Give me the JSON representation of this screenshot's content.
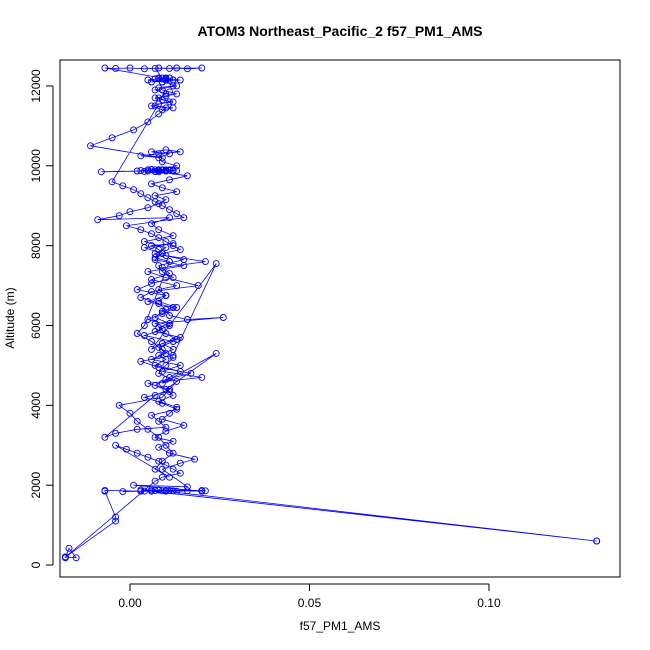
{
  "chart_data": {
    "type": "scatter",
    "title": "ATOM3 Northeast_Pacific_2 f57_PM1_AMS",
    "xlabel": "f57_PM1_AMS",
    "ylabel": "Altitude (m)",
    "xlim": [
      -0.0195,
      0.1365
    ],
    "ylim": [
      -300,
      12650
    ],
    "x_ticks": [
      0.0,
      0.05,
      0.1
    ],
    "x_tick_labels": [
      "0.00",
      "0.05",
      "0.10"
    ],
    "y_ticks": [
      0,
      2000,
      4000,
      6000,
      8000,
      10000,
      12000
    ],
    "y_tick_labels": [
      "0",
      "2000",
      "4000",
      "6000",
      "8000",
      "10000",
      "12000"
    ],
    "grid": false,
    "legend": "none",
    "series": [
      {
        "color": "#0000ff",
        "marker": "open-circle",
        "line": true,
        "x": [
          0.13,
          0.006,
          0.01,
          -0.002,
          0.004,
          0.012,
          0.003,
          0.02,
          0.001,
          0.016,
          0.009,
          0.014,
          0.018,
          0.011,
          0.008,
          0.012,
          0.007,
          0.01,
          0.015,
          0.009,
          0.011,
          0.013,
          0.008,
          0.012,
          0.01,
          0.024,
          0.009,
          0.011,
          0.014,
          0.007,
          0.01,
          0.008,
          0.012,
          0.009,
          0.013,
          0.01,
          0.008,
          0.011,
          0.007,
          0.009,
          0.012,
          0.005,
          0.01,
          0.008,
          0.013,
          0.006,
          0.011,
          0.009,
          0.021,
          0.01,
          0.008,
          0.006,
          0.012,
          0.004,
          0.009,
          0.007,
          0.015,
          0.005,
          0.01,
          0.019,
          0.006,
          0.003,
          0.008,
          0.01,
          0.011,
          0.016,
          0.026,
          0.007,
          0.009,
          0.004,
          0.012,
          0.008,
          0.01,
          0.006,
          0.014,
          0.009,
          0.02,
          0.005,
          0.011,
          0.007,
          -0.007,
          -0.004,
          0.002,
          0.01,
          0.008,
          0.006,
          0.013,
          0.009,
          0.004,
          0.011,
          0.007,
          0.01,
          0.017,
          0.008,
          0.003,
          0.012,
          0.024,
          0.006,
          0.009,
          0.014,
          0.007,
          0.011,
          0.005,
          0.009,
          0.013,
          0.008,
          0.01,
          0.002,
          0.006,
          0.012,
          0.009,
          0.008,
          0.015,
          0.007,
          0.01,
          0.004,
          0.012,
          0.008,
          0.006,
          0.011,
          -0.009,
          -0.003,
          0.0,
          0.005,
          0.008,
          0.01,
          0.007,
          0.013,
          0.009,
          0.006,
          0.011,
          0.016,
          0.008,
          0.003,
          0.01,
          0.012,
          0.007,
          0.009,
          0.005,
          0.011,
          0.008,
          0.013,
          0.006,
          0.01,
          0.009,
          0.012,
          0.008,
          0.004,
          0.007,
          0.01,
          -0.008,
          0.002,
          0.011,
          0.008,
          0.006,
          0.009,
          0.012,
          0.005,
          0.01,
          0.007,
          0.013,
          0.009,
          0.008,
          0.011,
          0.006,
          0.01,
          0.014,
          0.008,
          0.003,
          0.009,
          -0.011,
          -0.005,
          0.001,
          0.005,
          0.008,
          0.01,
          0.007,
          0.012,
          0.009,
          0.006,
          0.011,
          0.008,
          0.01,
          0.007,
          0.013,
          0.009,
          0.005,
          0.01,
          0.008,
          0.012,
          -0.007,
          -0.004,
          0.0,
          0.004,
          0.008,
          0.011,
          0.013,
          0.016,
          0.02,
          0.007,
          0.009,
          0.012,
          0.006,
          0.01,
          0.008,
          0.014,
          0.009,
          0.011,
          0.007,
          0.01,
          0.012,
          0.008,
          0.009,
          0.011,
          0.013,
          0.01,
          0.007,
          0.009,
          0.012,
          0.008,
          -0.005,
          -0.002,
          0.001,
          0.003,
          0.005,
          0.007,
          0.009,
          0.011,
          0.013,
          0.015,
          -0.001,
          0.003,
          0.006,
          0.008,
          0.01,
          0.012,
          0.014,
          0.009,
          0.007,
          0.011,
          0.004,
          0.002,
          0.006,
          0.009,
          0.012,
          0.01,
          0.008,
          0.013,
          0.011,
          0.009,
          -0.003,
          0.0,
          0.002,
          0.005,
          0.008,
          0.01,
          0.012,
          0.009,
          0.007,
          0.011,
          -0.004,
          -0.001,
          0.002,
          0.005,
          0.008,
          0.01,
          0.012,
          0.014,
          0.009,
          0.007,
          -0.018,
          -0.018,
          -0.017,
          -0.015,
          -0.018,
          -0.004,
          -0.004,
          -0.007,
          -0.007,
          0.003,
          0.006,
          0.009,
          0.011,
          0.013,
          0.016,
          0.02,
          0.021,
          0.008,
          0.007,
          0.01,
          0.13
        ],
        "y": [
          600,
          1850,
          1870,
          1840,
          1850,
          1860,
          1880,
          1850,
          2000,
          1960,
          2400,
          2550,
          2650,
          2800,
          2950,
          3100,
          3200,
          3350,
          3500,
          3650,
          3800,
          3950,
          4100,
          4250,
          4400,
          5300,
          4550,
          4700,
          4850,
          5000,
          5150,
          5250,
          5400,
          5550,
          5650,
          5800,
          5950,
          6050,
          6200,
          6350,
          6450,
          6600,
          6750,
          6900,
          7000,
          7150,
          7300,
          7450,
          7600,
          7750,
          7900,
          8000,
          8050,
          7950,
          7800,
          7650,
          7500,
          7350,
          7200,
          7000,
          6850,
          6700,
          6550,
          6400,
          6250,
          6150,
          6200,
          6050,
          5900,
          5750,
          5600,
          5450,
          5300,
          5150,
          5000,
          4850,
          4700,
          4550,
          4400,
          4250,
          3200,
          3300,
          3400,
          3450,
          3600,
          3750,
          3900,
          4050,
          4200,
          4350,
          4500,
          4650,
          4800,
          4950,
          5100,
          5250,
          7550,
          5400,
          5550,
          5700,
          5850,
          6000,
          6150,
          6300,
          6450,
          6600,
          6750,
          6900,
          7050,
          7200,
          7350,
          7500,
          7650,
          7800,
          7950,
          8100,
          8250,
          8400,
          8550,
          8700,
          8650,
          8750,
          8850,
          8950,
          9050,
          9150,
          9250,
          9350,
          9450,
          9550,
          9650,
          9750,
          9850,
          9880,
          9900,
          9880,
          9860,
          9900,
          9870,
          9890,
          9900,
          9880,
          9910,
          9870,
          9900,
          9890,
          9880,
          9860,
          9900,
          9880,
          9850,
          9870,
          9900,
          9880,
          9910,
          9890,
          9870,
          9900,
          9880,
          9860,
          10000,
          10100,
          10200,
          10300,
          10350,
          10400,
          10350,
          10300,
          10250,
          10200,
          10500,
          10700,
          10900,
          11100,
          11300,
          11450,
          11500,
          11450,
          11400,
          11500,
          11600,
          11700,
          11800,
          11900,
          12000,
          12100,
          12150,
          12200,
          12180,
          12150,
          12450,
          12440,
          12450,
          12430,
          12450,
          12440,
          12450,
          12430,
          12450,
          12440,
          12200,
          12150,
          12100,
          12180,
          12200,
          12150,
          12100,
          12200,
          12180,
          12150,
          12000,
          11950,
          11900,
          11850,
          11800,
          11750,
          11700,
          11650,
          11600,
          11550,
          9600,
          9500,
          9400,
          9300,
          9200,
          9100,
          9000,
          8900,
          8800,
          8700,
          8500,
          8400,
          8300,
          8200,
          8100,
          8000,
          7900,
          7800,
          7700,
          7600,
          6000,
          5800,
          5600,
          5400,
          5200,
          5000,
          4800,
          4600,
          4400,
          4200,
          4000,
          3800,
          3600,
          3400,
          3200,
          3000,
          2800,
          2600,
          2400,
          2200,
          3000,
          2900,
          2800,
          2700,
          2600,
          2500,
          2400,
          2300,
          2200,
          2100,
          200,
          180,
          420,
          180,
          200,
          1100,
          1200,
          1850,
          1870,
          1850,
          1880,
          1860,
          1870,
          1850,
          1860,
          1870,
          1860,
          1880,
          1870,
          1850,
          600
        ]
      }
    ]
  }
}
